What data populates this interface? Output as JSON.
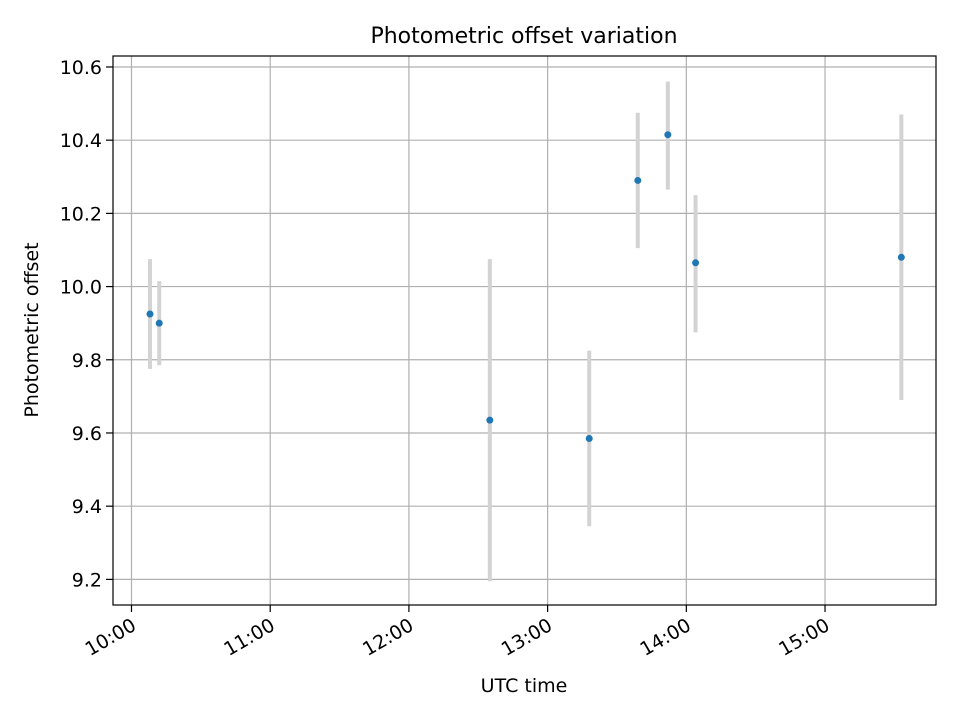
{
  "chart_data": {
    "type": "scatter",
    "title": "Photometric offset variation",
    "xlabel": "UTC time",
    "ylabel": "Photometric offset",
    "x_ticks": [
      "10:00",
      "11:00",
      "12:00",
      "13:00",
      "14:00",
      "15:00"
    ],
    "y_ticks": [
      "9.2",
      "9.4",
      "9.6",
      "9.8",
      "10.0",
      "10.2",
      "10.4",
      "10.6"
    ],
    "xlim": [
      "09:52",
      "15:48"
    ],
    "ylim": [
      9.13,
      10.63
    ],
    "grid": true,
    "colors": {
      "points": "#1f77b4",
      "errorbars": "#d3d3d3",
      "grid": "#b0b0b0"
    },
    "points": [
      {
        "x": "10:08",
        "y": 9.925,
        "ylow": 9.775,
        "yhigh": 10.075
      },
      {
        "x": "10:12",
        "y": 9.9,
        "ylow": 9.785,
        "yhigh": 10.015
      },
      {
        "x": "12:35",
        "y": 9.635,
        "ylow": 9.195,
        "yhigh": 10.075
      },
      {
        "x": "13:18",
        "y": 9.585,
        "ylow": 9.345,
        "yhigh": 9.825
      },
      {
        "x": "13:39",
        "y": 10.29,
        "ylow": 10.105,
        "yhigh": 10.475
      },
      {
        "x": "13:52",
        "y": 10.415,
        "ylow": 10.265,
        "yhigh": 10.56
      },
      {
        "x": "14:04",
        "y": 10.065,
        "ylow": 9.875,
        "yhigh": 10.25
      },
      {
        "x": "15:33",
        "y": 10.08,
        "ylow": 9.69,
        "yhigh": 10.47
      }
    ]
  }
}
